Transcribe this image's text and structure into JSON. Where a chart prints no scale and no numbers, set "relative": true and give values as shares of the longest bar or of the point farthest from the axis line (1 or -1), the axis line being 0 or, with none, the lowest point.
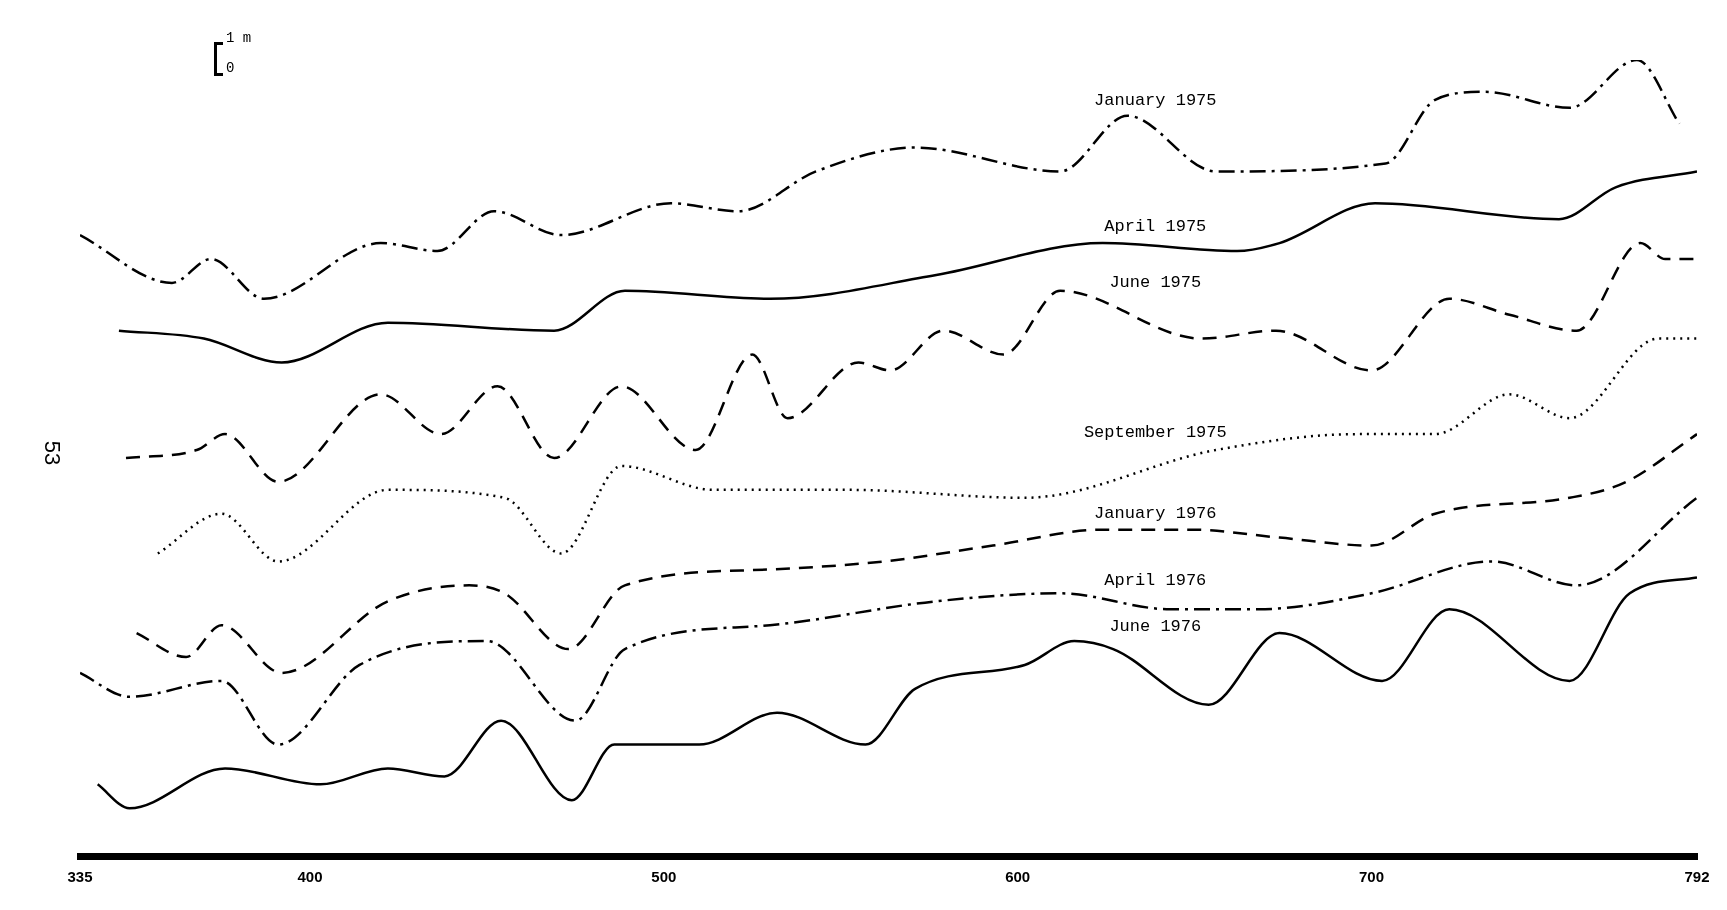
{
  "chart_data": {
    "type": "line",
    "relative": true,
    "xlim": [
      335,
      792
    ],
    "xticks": [
      335,
      400,
      500,
      600,
      700,
      792
    ],
    "grid": false,
    "legend": false,
    "marker": "none",
    "annotations": [
      "1 m",
      "0",
      "53"
    ],
    "series": [
      {
        "name": "January 1975",
        "color": "#000000",
        "line_style": "dashdot",
        "x": [
          335,
          361,
          372,
          387,
          420,
          436,
          452,
          471,
          502,
          521,
          543,
          571,
          612,
          631,
          656,
          704,
          718,
          732,
          756,
          775,
          787
        ],
        "values": [
          0.78,
          0.72,
          0.75,
          0.7,
          0.77,
          0.76,
          0.81,
          0.78,
          0.82,
          0.81,
          0.86,
          0.89,
          0.86,
          0.93,
          0.86,
          0.87,
          0.95,
          0.96,
          0.94,
          1,
          0.92
        ]
      },
      {
        "name": "April 1975",
        "color": "#000000",
        "line_style": "solid",
        "x": [
          346,
          370,
          392,
          422,
          469,
          489,
          530,
          577,
          624,
          662,
          674,
          701,
          753,
          769,
          792
        ],
        "values": [
          0.66,
          0.65,
          0.62,
          0.67,
          0.66,
          0.71,
          0.7,
          0.73,
          0.77,
          0.76,
          0.77,
          0.82,
          0.8,
          0.84,
          0.86
        ]
      },
      {
        "name": "June 1975",
        "color": "#000000",
        "line_style": "dashed",
        "x": [
          348,
          368,
          376,
          391,
          420,
          437,
          453,
          469,
          488,
          509,
          525,
          535,
          555,
          564,
          579,
          596,
          612,
          652,
          673,
          700,
          722,
          739,
          758,
          776,
          783,
          792
        ],
        "values": [
          0.5,
          0.51,
          0.53,
          0.47,
          0.58,
          0.53,
          0.59,
          0.5,
          0.59,
          0.51,
          0.63,
          0.55,
          0.62,
          0.61,
          0.66,
          0.63,
          0.71,
          0.65,
          0.66,
          0.61,
          0.7,
          0.68,
          0.66,
          0.77,
          0.75,
          0.75
        ]
      },
      {
        "name": "September 1975",
        "color": "#000000",
        "line_style": "dotted",
        "x": [
          357,
          375,
          391,
          422,
          455,
          471,
          488,
          514,
          552,
          602,
          656,
          696,
          718,
          739,
          756,
          781,
          792
        ],
        "values": [
          0.38,
          0.43,
          0.37,
          0.46,
          0.45,
          0.38,
          0.49,
          0.46,
          0.46,
          0.45,
          0.51,
          0.53,
          0.53,
          0.58,
          0.55,
          0.65,
          0.65
        ]
      },
      {
        "name": "January 1976",
        "color": "#000000",
        "line_style": "dashed",
        "x": [
          351,
          365,
          375,
          392,
          422,
          445,
          455,
          473,
          489,
          530,
          562,
          593,
          624,
          649,
          674,
          700,
          718,
          756,
          772,
          792
        ],
        "values": [
          0.28,
          0.25,
          0.29,
          0.23,
          0.32,
          0.34,
          0.33,
          0.26,
          0.34,
          0.36,
          0.37,
          0.39,
          0.41,
          0.41,
          0.4,
          0.39,
          0.43,
          0.45,
          0.47,
          0.53
        ]
      },
      {
        "name": "April 1976",
        "color": "#000000",
        "line_style": "dashdot",
        "x": [
          335,
          349,
          375,
          391,
          414,
          450,
          475,
          489,
          530,
          577,
          612,
          643,
          668,
          700,
          734,
          758,
          792
        ],
        "values": [
          0.23,
          0.2,
          0.22,
          0.14,
          0.24,
          0.27,
          0.17,
          0.26,
          0.29,
          0.32,
          0.33,
          0.31,
          0.31,
          0.33,
          0.37,
          0.34,
          0.45
        ]
      },
      {
        "name": "June 1976",
        "color": "#000000",
        "line_style": "solid",
        "x": [
          340,
          349,
          376,
          403,
          422,
          438,
          454,
          474,
          486,
          510,
          532,
          557,
          571,
          602,
          616,
          627,
          654,
          674,
          703,
          722,
          756,
          773,
          792
        ],
        "values": [
          0.09,
          0.06,
          0.11,
          0.09,
          0.11,
          0.1,
          0.17,
          0.07,
          0.14,
          0.14,
          0.18,
          0.14,
          0.21,
          0.24,
          0.27,
          0.26,
          0.19,
          0.28,
          0.22,
          0.31,
          0.22,
          0.33,
          0.35
        ]
      }
    ]
  }
}
